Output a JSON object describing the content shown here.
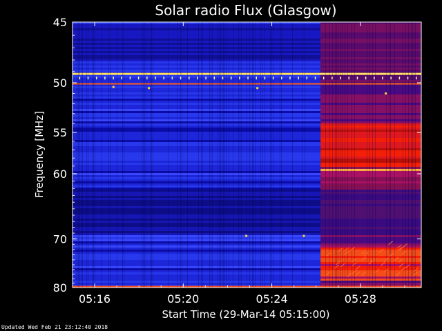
{
  "chart_data": {
    "type": "heatmap",
    "title": "Solar radio Flux (Glasgow)",
    "xlabel": "Start Time (29-Mar-14 05:15:00)",
    "ylabel": "Frequency [MHz]",
    "x_start": "05:15:00",
    "x_end": "05:30:45",
    "x_ticks": [
      "05:16",
      "05:20",
      "05:24",
      "05:28"
    ],
    "x_tick_minutes": [
      1,
      5,
      9,
      13
    ],
    "x_range_minutes": [
      0,
      15.75
    ],
    "y_ticks": [
      "45",
      "50",
      "55",
      "60",
      "70",
      "80"
    ],
    "y_tick_values": [
      45,
      50,
      55,
      60,
      70,
      80
    ],
    "ylim": [
      45,
      80
    ],
    "y_scale": "reciprocal",
    "burst_start_minutes": 11.2,
    "bright_bands_mhz": [
      49.2,
      50.1,
      59.5,
      80
    ],
    "colormap": [
      "#000030",
      "#0000b0",
      "#2a3cf0",
      "#b01060",
      "#ff2000",
      "#ffa020",
      "#ffff90"
    ]
  },
  "footer": "Updated Wed Feb 21 23:12:40 2018"
}
